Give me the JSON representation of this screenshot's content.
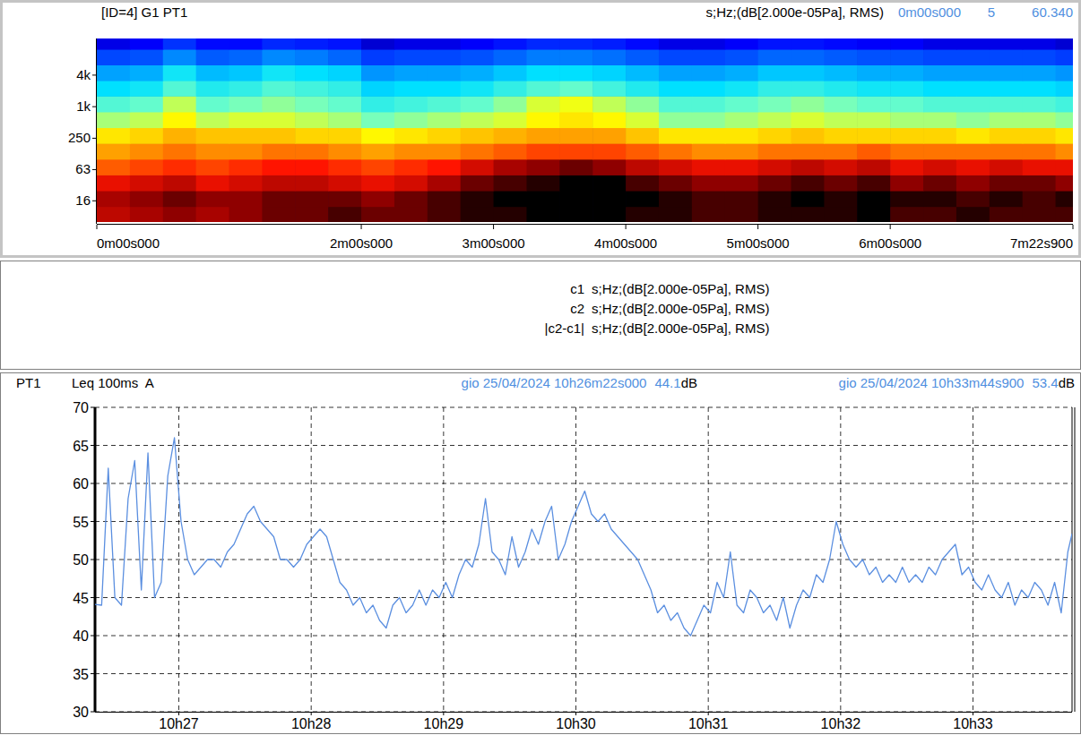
{
  "chart_data": [
    {
      "type": "heatmap",
      "title": "[ID=4] G1 PT1",
      "subtitle": "s;Hz;(dB[2.000e-05Pa], RMS)",
      "cursor": [
        "0m00s000",
        "5",
        "60.340"
      ],
      "log": "y",
      "xlim": [
        0,
        442.9
      ],
      "ylim": [
        6.3,
        20000
      ],
      "xticks": [
        {
          "value": 0,
          "label": "0m00s000"
        },
        {
          "value": 120,
          "label": "2m00s000"
        },
        {
          "value": 180,
          "label": "3m00s000"
        },
        {
          "value": 240,
          "label": "4m00s000"
        },
        {
          "value": 300,
          "label": "5m00s000"
        },
        {
          "value": 360,
          "label": "6m00s000"
        },
        {
          "value": 442.9,
          "label": "7m22s900"
        }
      ],
      "yticks": [
        16,
        63,
        250,
        {
          "value": 1000,
          "label": "1k"
        },
        {
          "value": 4000,
          "label": "4k"
        }
      ],
      "zlim": [
        0,
        60
      ],
      "x_edges": [
        0,
        15,
        30,
        45,
        60,
        75,
        90,
        105,
        120,
        135,
        150,
        165,
        180,
        195,
        210,
        225,
        240,
        255,
        270,
        285,
        300,
        315,
        330,
        345,
        360,
        375,
        390,
        405,
        420,
        435,
        450
      ],
      "y_edges": [
        6.3,
        12.5,
        25,
        50,
        100,
        200,
        400,
        800,
        1600,
        3150,
        6300,
        12500,
        20000
      ],
      "cells": [
        [
          54,
          55,
          56,
          55,
          56,
          57,
          57,
          58,
          57,
          57,
          58,
          59,
          59,
          60,
          60,
          60,
          59,
          59,
          58,
          58,
          59,
          59,
          59,
          60,
          58,
          58,
          59,
          58,
          58,
          58
        ],
        [
          55,
          56,
          57,
          56,
          56,
          57,
          57,
          57,
          56,
          57,
          58,
          59,
          60,
          60,
          61,
          61,
          60,
          59,
          58,
          58,
          59,
          60,
          59,
          60,
          59,
          59,
          58,
          59,
          58,
          59
        ],
        [
          52,
          53,
          54,
          52,
          53,
          54,
          54,
          53,
          52,
          53,
          55,
          57,
          58,
          59,
          60,
          60,
          58,
          57,
          56,
          56,
          57,
          58,
          57,
          58,
          56,
          57,
          56,
          57,
          57,
          56
        ],
        [
          48,
          49,
          50,
          49,
          50,
          51,
          51,
          50,
          49,
          50,
          51,
          53,
          55,
          56,
          57,
          56,
          54,
          53,
          52,
          52,
          53,
          54,
          53,
          54,
          52,
          53,
          52,
          53,
          52,
          52
        ],
        [
          45,
          46,
          47,
          46,
          46,
          47,
          47,
          46,
          45,
          46,
          46,
          47,
          48,
          49,
          49,
          49,
          48,
          47,
          46,
          46,
          47,
          47,
          47,
          48,
          47,
          47,
          47,
          47,
          47,
          46
        ],
        [
          41,
          42,
          44,
          43,
          43,
          43,
          42,
          42,
          40,
          41,
          42,
          43,
          44,
          45,
          45,
          45,
          43,
          41,
          41,
          41,
          42,
          43,
          42,
          42,
          42,
          42,
          41,
          42,
          42,
          41
        ],
        [
          36,
          37,
          40,
          37,
          38,
          38,
          37,
          36,
          34,
          35,
          36,
          37,
          38,
          40,
          41,
          40,
          38,
          35,
          35,
          36,
          37,
          38,
          37,
          37,
          36,
          36,
          35,
          36,
          36,
          35
        ],
        [
          32,
          33,
          37,
          33,
          34,
          35,
          34,
          33,
          30,
          31,
          32,
          33,
          35,
          38,
          39,
          37,
          35,
          32,
          32,
          33,
          34,
          35,
          34,
          33,
          33,
          32,
          32,
          32,
          32,
          31
        ],
        [
          27,
          28,
          32,
          29,
          30,
          32,
          31,
          30,
          26,
          27,
          27,
          28,
          30,
          32,
          33,
          31,
          29,
          27,
          27,
          28,
          30,
          30,
          29,
          28,
          28,
          27,
          27,
          27,
          27,
          26
        ],
        [
          22,
          23,
          28,
          24,
          25,
          28,
          27,
          26,
          21,
          22,
          22,
          23,
          25,
          27,
          27,
          26,
          24,
          22,
          22,
          23,
          25,
          25,
          24,
          23,
          23,
          22,
          22,
          22,
          22,
          21
        ],
        [
          14,
          15,
          20,
          16,
          17,
          20,
          19,
          17,
          13,
          14,
          14,
          15,
          17,
          19,
          19,
          18,
          16,
          14,
          14,
          15,
          17,
          17,
          16,
          15,
          15,
          14,
          14,
          14,
          14,
          13
        ],
        [
          6,
          7,
          12,
          8,
          8,
          11,
          10,
          9,
          5,
          6,
          6,
          7,
          9,
          11,
          11,
          10,
          8,
          6,
          6,
          7,
          9,
          9,
          8,
          7,
          7,
          6,
          6,
          6,
          6,
          5
        ]
      ]
    },
    {
      "type": "line",
      "channel": "PT1",
      "title": "Leq 100ms  A",
      "cursors": [
        {
          "date": "gio 25/04/2024 10h26m22s000",
          "value": 44.1,
          "unit": "dB"
        },
        {
          "date": "gio 25/04/2024 10h33m44s900",
          "value": 53.4,
          "unit": "dB"
        }
      ],
      "xlim": [
        37582,
        38024.9
      ],
      "xticks": [
        {
          "value": 37620,
          "label": "10h27"
        },
        {
          "value": 37680,
          "label": "10h28"
        },
        {
          "value": 37740,
          "label": "10h29"
        },
        {
          "value": 37800,
          "label": "10h30"
        },
        {
          "value": 37860,
          "label": "10h31"
        },
        {
          "value": 37920,
          "label": "10h32"
        },
        {
          "value": 37980,
          "label": "10h33"
        }
      ],
      "ylim": [
        30,
        70
      ],
      "yticks": [
        30,
        35,
        40,
        45,
        50,
        55,
        60,
        65,
        70
      ],
      "grid": true,
      "x": [
        37582,
        37585,
        37588,
        37591,
        37594,
        37597,
        37600,
        37603,
        37606,
        37609,
        37612,
        37615,
        37618,
        37621,
        37624,
        37627,
        37630,
        37633,
        37636,
        37639,
        37642,
        37645,
        37648,
        37651,
        37654,
        37657,
        37660,
        37663,
        37666,
        37669,
        37672,
        37675,
        37678,
        37681,
        37684,
        37687,
        37690,
        37693,
        37696,
        37699,
        37702,
        37705,
        37708,
        37711,
        37714,
        37717,
        37720,
        37723,
        37726,
        37729,
        37732,
        37735,
        37738,
        37741,
        37744,
        37747,
        37750,
        37753,
        37756,
        37759,
        37762,
        37765,
        37768,
        37771,
        37774,
        37777,
        37780,
        37783,
        37786,
        37789,
        37792,
        37795,
        37798,
        37801,
        37804,
        37807,
        37810,
        37813,
        37816,
        37819,
        37822,
        37825,
        37828,
        37831,
        37834,
        37837,
        37840,
        37843,
        37846,
        37849,
        37852,
        37855,
        37858,
        37861,
        37864,
        37867,
        37870,
        37873,
        37876,
        37879,
        37882,
        37885,
        37888,
        37891,
        37894,
        37897,
        37900,
        37903,
        37906,
        37909,
        37912,
        37915,
        37918,
        37921,
        37924,
        37927,
        37930,
        37933,
        37936,
        37939,
        37942,
        37945,
        37948,
        37951,
        37954,
        37957,
        37960,
        37963,
        37966,
        37969,
        37972,
        37975,
        37978,
        37981,
        37984,
        37987,
        37990,
        37993,
        37996,
        37999,
        38002,
        38005,
        38008,
        38011,
        38014,
        38017,
        38020,
        38023,
        38024.9
      ],
      "series": [
        {
          "color": "#5b8fe0",
          "values": [
            44.1,
            44,
            62,
            45,
            44,
            58,
            63,
            46,
            64,
            45,
            47,
            61,
            66,
            55,
            50,
            48,
            49,
            50,
            50,
            49,
            51,
            52,
            54,
            56,
            57,
            55,
            54,
            53,
            50,
            50,
            49,
            50,
            52,
            53,
            54,
            53,
            50,
            47,
            46,
            44,
            45,
            43,
            44,
            42,
            41,
            44,
            45,
            43,
            44,
            46,
            44,
            46,
            45,
            47,
            45,
            48,
            50,
            49,
            52,
            58,
            51,
            50,
            48,
            53,
            49,
            51,
            54,
            52,
            55,
            57,
            50,
            52,
            55,
            57,
            59,
            56,
            55,
            56,
            54,
            53,
            52,
            51,
            50,
            48,
            46,
            43,
            44,
            42,
            43,
            41,
            40,
            42,
            44,
            43,
            47,
            45,
            51,
            44,
            43,
            46,
            45,
            43,
            44,
            42,
            45,
            41,
            44,
            46,
            45,
            48,
            47,
            50,
            55,
            52,
            50,
            49,
            50,
            48,
            49,
            47,
            48,
            47,
            49,
            47,
            48,
            47,
            49,
            48,
            50,
            51,
            52,
            48,
            49,
            47,
            46,
            48,
            46,
            45,
            47,
            44,
            46,
            45,
            47,
            46,
            44,
            47,
            43,
            51,
            53.4
          ]
        }
      ]
    }
  ],
  "cursor_panel": {
    "rows": [
      {
        "label": "c1",
        "unit": "s;Hz;(dB[2.000e-05Pa], RMS)"
      },
      {
        "label": "c2",
        "unit": "s;Hz;(dB[2.000e-05Pa], RMS)"
      },
      {
        "label": "|c2-c1|",
        "unit": "s;Hz;(dB[2.000e-05Pa], RMS)"
      }
    ]
  }
}
